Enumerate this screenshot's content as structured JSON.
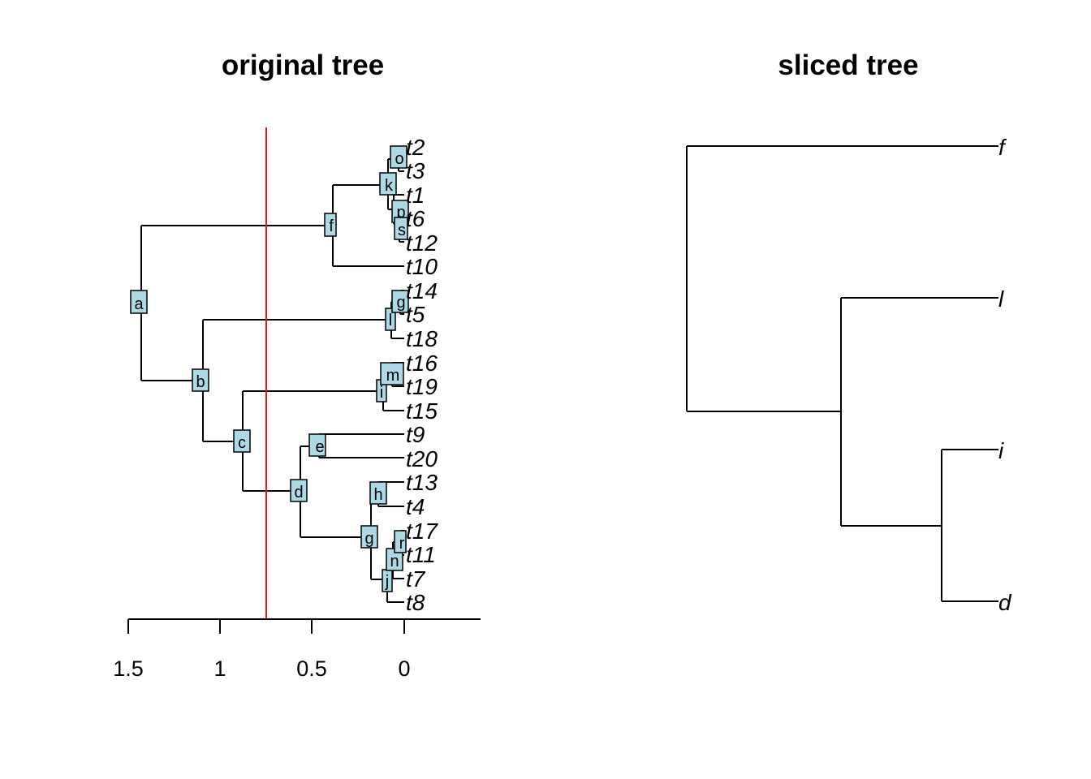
{
  "colors": {
    "node_fill": "#add8e6",
    "slice_line": "#e31a1c",
    "edges": "#000000"
  },
  "left_panel": {
    "title": "original tree",
    "axis": {
      "ticks": [
        "1.5",
        "1",
        "0.5",
        "0"
      ]
    },
    "slice_time": 0.75,
    "tips": [
      "t2",
      "t3",
      "t1",
      "t6",
      "t12",
      "t10",
      "t14",
      "t5",
      "t18",
      "t16",
      "t19",
      "t15",
      "t9",
      "t20",
      "t13",
      "t4",
      "t17",
      "t11",
      "t7",
      "t8"
    ],
    "nodes": [
      "a",
      "b",
      "c",
      "d",
      "e",
      "f",
      "g",
      "h",
      "i",
      "j",
      "k",
      "l",
      "m",
      "n",
      "o",
      "p",
      "q",
      "r",
      "s"
    ]
  },
  "right_panel": {
    "title": "sliced tree",
    "tips": [
      "f",
      "l",
      "i",
      "d"
    ]
  }
}
